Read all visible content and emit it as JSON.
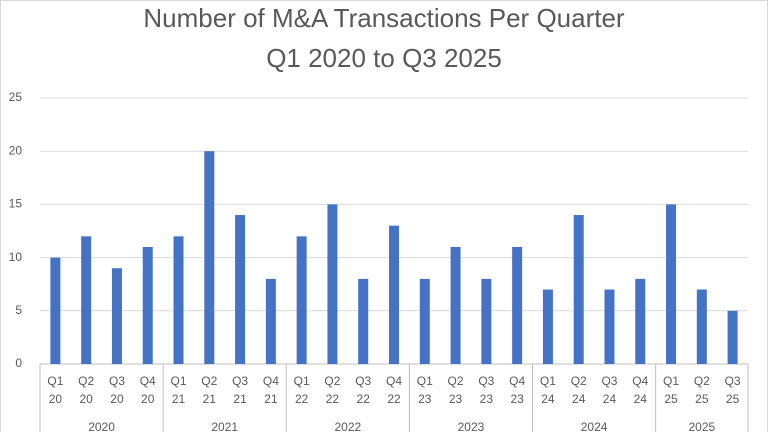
{
  "chart_data": {
    "type": "bar",
    "title": [
      "Number of M&A Transactions Per Quarter",
      "Q1 2020 to Q3 2025"
    ],
    "color": "#4472c4",
    "grid": true,
    "ylim": [
      0,
      25
    ],
    "yticks": [
      0,
      5,
      10,
      15,
      20,
      25
    ],
    "groups": [
      {
        "label": "2020",
        "categories": [
          [
            "Q1",
            "20"
          ],
          [
            "Q2",
            "20"
          ],
          [
            "Q3",
            "20"
          ],
          [
            "Q4",
            "20"
          ]
        ],
        "values": [
          10,
          12,
          9,
          11
        ]
      },
      {
        "label": "2021",
        "categories": [
          [
            "Q1",
            "21"
          ],
          [
            "Q2",
            "21"
          ],
          [
            "Q3",
            "21"
          ],
          [
            "Q4",
            "21"
          ]
        ],
        "values": [
          12,
          20,
          14,
          8
        ]
      },
      {
        "label": "2022",
        "categories": [
          [
            "Q1",
            "22"
          ],
          [
            "Q2",
            "22"
          ],
          [
            "Q3",
            "22"
          ],
          [
            "Q4",
            "22"
          ]
        ],
        "values": [
          12,
          15,
          8,
          13
        ]
      },
      {
        "label": "2023",
        "categories": [
          [
            "Q1",
            "23"
          ],
          [
            "Q2",
            "23"
          ],
          [
            "Q3",
            "23"
          ],
          [
            "Q4",
            "23"
          ]
        ],
        "values": [
          8,
          11,
          8,
          11
        ]
      },
      {
        "label": "2024",
        "categories": [
          [
            "Q1",
            "24"
          ],
          [
            "Q2",
            "24"
          ],
          [
            "Q3",
            "24"
          ],
          [
            "Q4",
            "24"
          ]
        ],
        "values": [
          7,
          14,
          7,
          8
        ]
      },
      {
        "label": "2025",
        "categories": [
          [
            "Q1",
            "25"
          ],
          [
            "Q2",
            "25"
          ],
          [
            "Q3",
            "25"
          ]
        ],
        "values": [
          15,
          7,
          5
        ]
      }
    ]
  }
}
